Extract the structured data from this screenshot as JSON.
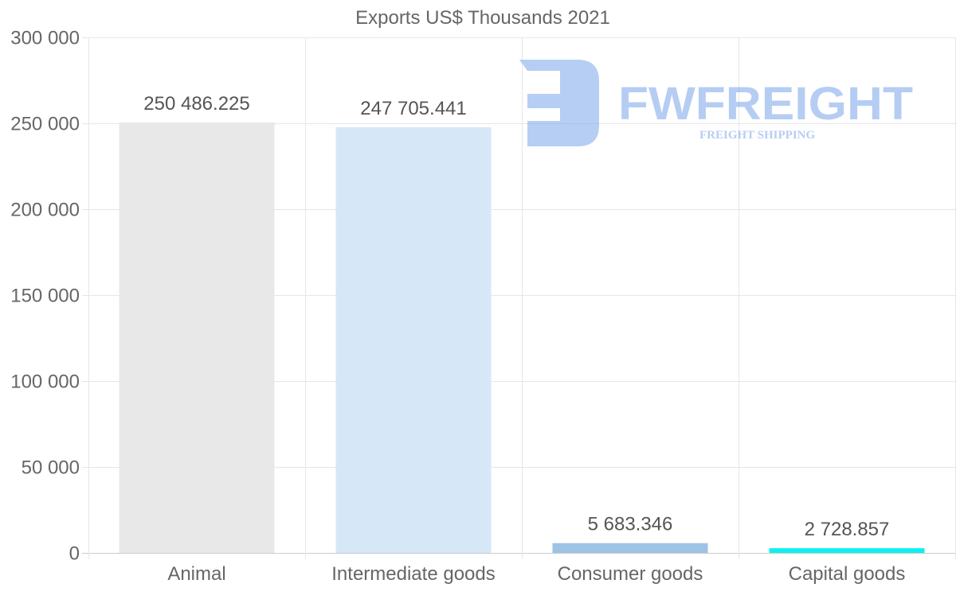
{
  "chart_data": {
    "type": "bar",
    "title": "Exports US$ Thousands 2021",
    "categories": [
      "Animal",
      "Intermediate goods",
      "Consumer goods",
      "Capital goods"
    ],
    "values": [
      250486.225,
      247705.441,
      5683.346,
      2728.857
    ],
    "data_labels": [
      "250 486.225",
      "247 705.441",
      "5 683.346",
      "2 728.857"
    ],
    "colors": [
      "#e8e8e8",
      "#d6e7f8",
      "#9dc3e6",
      "#0df0f0"
    ],
    "ylim": [
      0,
      300000
    ],
    "yticks": [
      0,
      50000,
      100000,
      150000,
      200000,
      250000,
      300000
    ],
    "ytick_labels": [
      "0",
      "50 000",
      "100 000",
      "150 000",
      "200 000",
      "250 000",
      "300 000"
    ],
    "xlabel": "",
    "ylabel": "",
    "grid": true,
    "legend": "none"
  },
  "watermark": {
    "brand": "FWFREIGHT",
    "tagline": "FREIGHT SHIPPING"
  }
}
